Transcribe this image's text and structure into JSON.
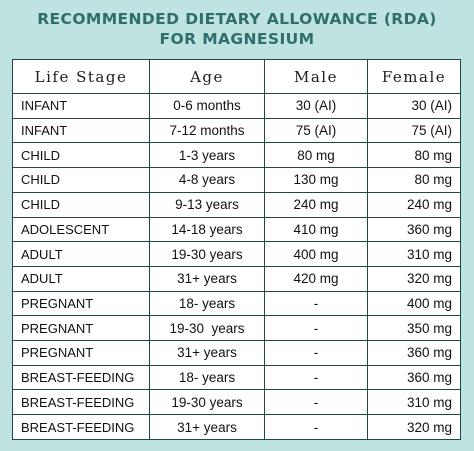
{
  "title": {
    "line1": "RECOMMENDED DIETARY ALLOWANCE (RDA)",
    "line2": "FOR MAGNESIUM"
  },
  "table": {
    "headers": {
      "life_stage": "Life Stage",
      "age": "Age",
      "male": "Male",
      "female": "Female"
    },
    "rows": [
      {
        "stage": "INFANT",
        "age": "0-6 months",
        "male": "30 (AI)",
        "female": "30 (AI)"
      },
      {
        "stage": "INFANT",
        "age": "7-12 months",
        "male": "75 (AI)",
        "female": "75 (AI)"
      },
      {
        "stage": "CHILD",
        "age": "1-3 years",
        "male": "80 mg",
        "female": "80 mg"
      },
      {
        "stage": "CHILD",
        "age": "4-8 years",
        "male": "130 mg",
        "female": "80 mg"
      },
      {
        "stage": "CHILD",
        "age": "9-13 years",
        "male": "240 mg",
        "female": "240 mg"
      },
      {
        "stage": "ADOLESCENT",
        "age": "14-18 years",
        "male": "410 mg",
        "female": "360 mg"
      },
      {
        "stage": "ADULT",
        "age": "19-30 years",
        "male": "400 mg",
        "female": "310 mg"
      },
      {
        "stage": "ADULT",
        "age": "31+ years",
        "male": "420 mg",
        "female": "320 mg"
      },
      {
        "stage": "PREGNANT",
        "age": "18- years",
        "male": "-",
        "female": "400 mg"
      },
      {
        "stage": "PREGNANT",
        "age": "19-30  years",
        "male": "-",
        "female": "350 mg"
      },
      {
        "stage": "PREGNANT",
        "age": "31+ years",
        "male": "-",
        "female": "360 mg"
      },
      {
        "stage": "BREAST-FEEDING",
        "age": "18- years",
        "male": "-",
        "female": "360 mg"
      },
      {
        "stage": "BREAST-FEEDING",
        "age": "19-30 years",
        "male": "-",
        "female": "310 mg"
      },
      {
        "stage": "BREAST-FEEDING",
        "age": "31+ years",
        "male": "-",
        "female": "320 mg"
      }
    ]
  },
  "colors": {
    "background": "#bfe3e0",
    "title": "#2f6e6b",
    "border": "#1f4947",
    "cell_background": "#ffffff"
  }
}
